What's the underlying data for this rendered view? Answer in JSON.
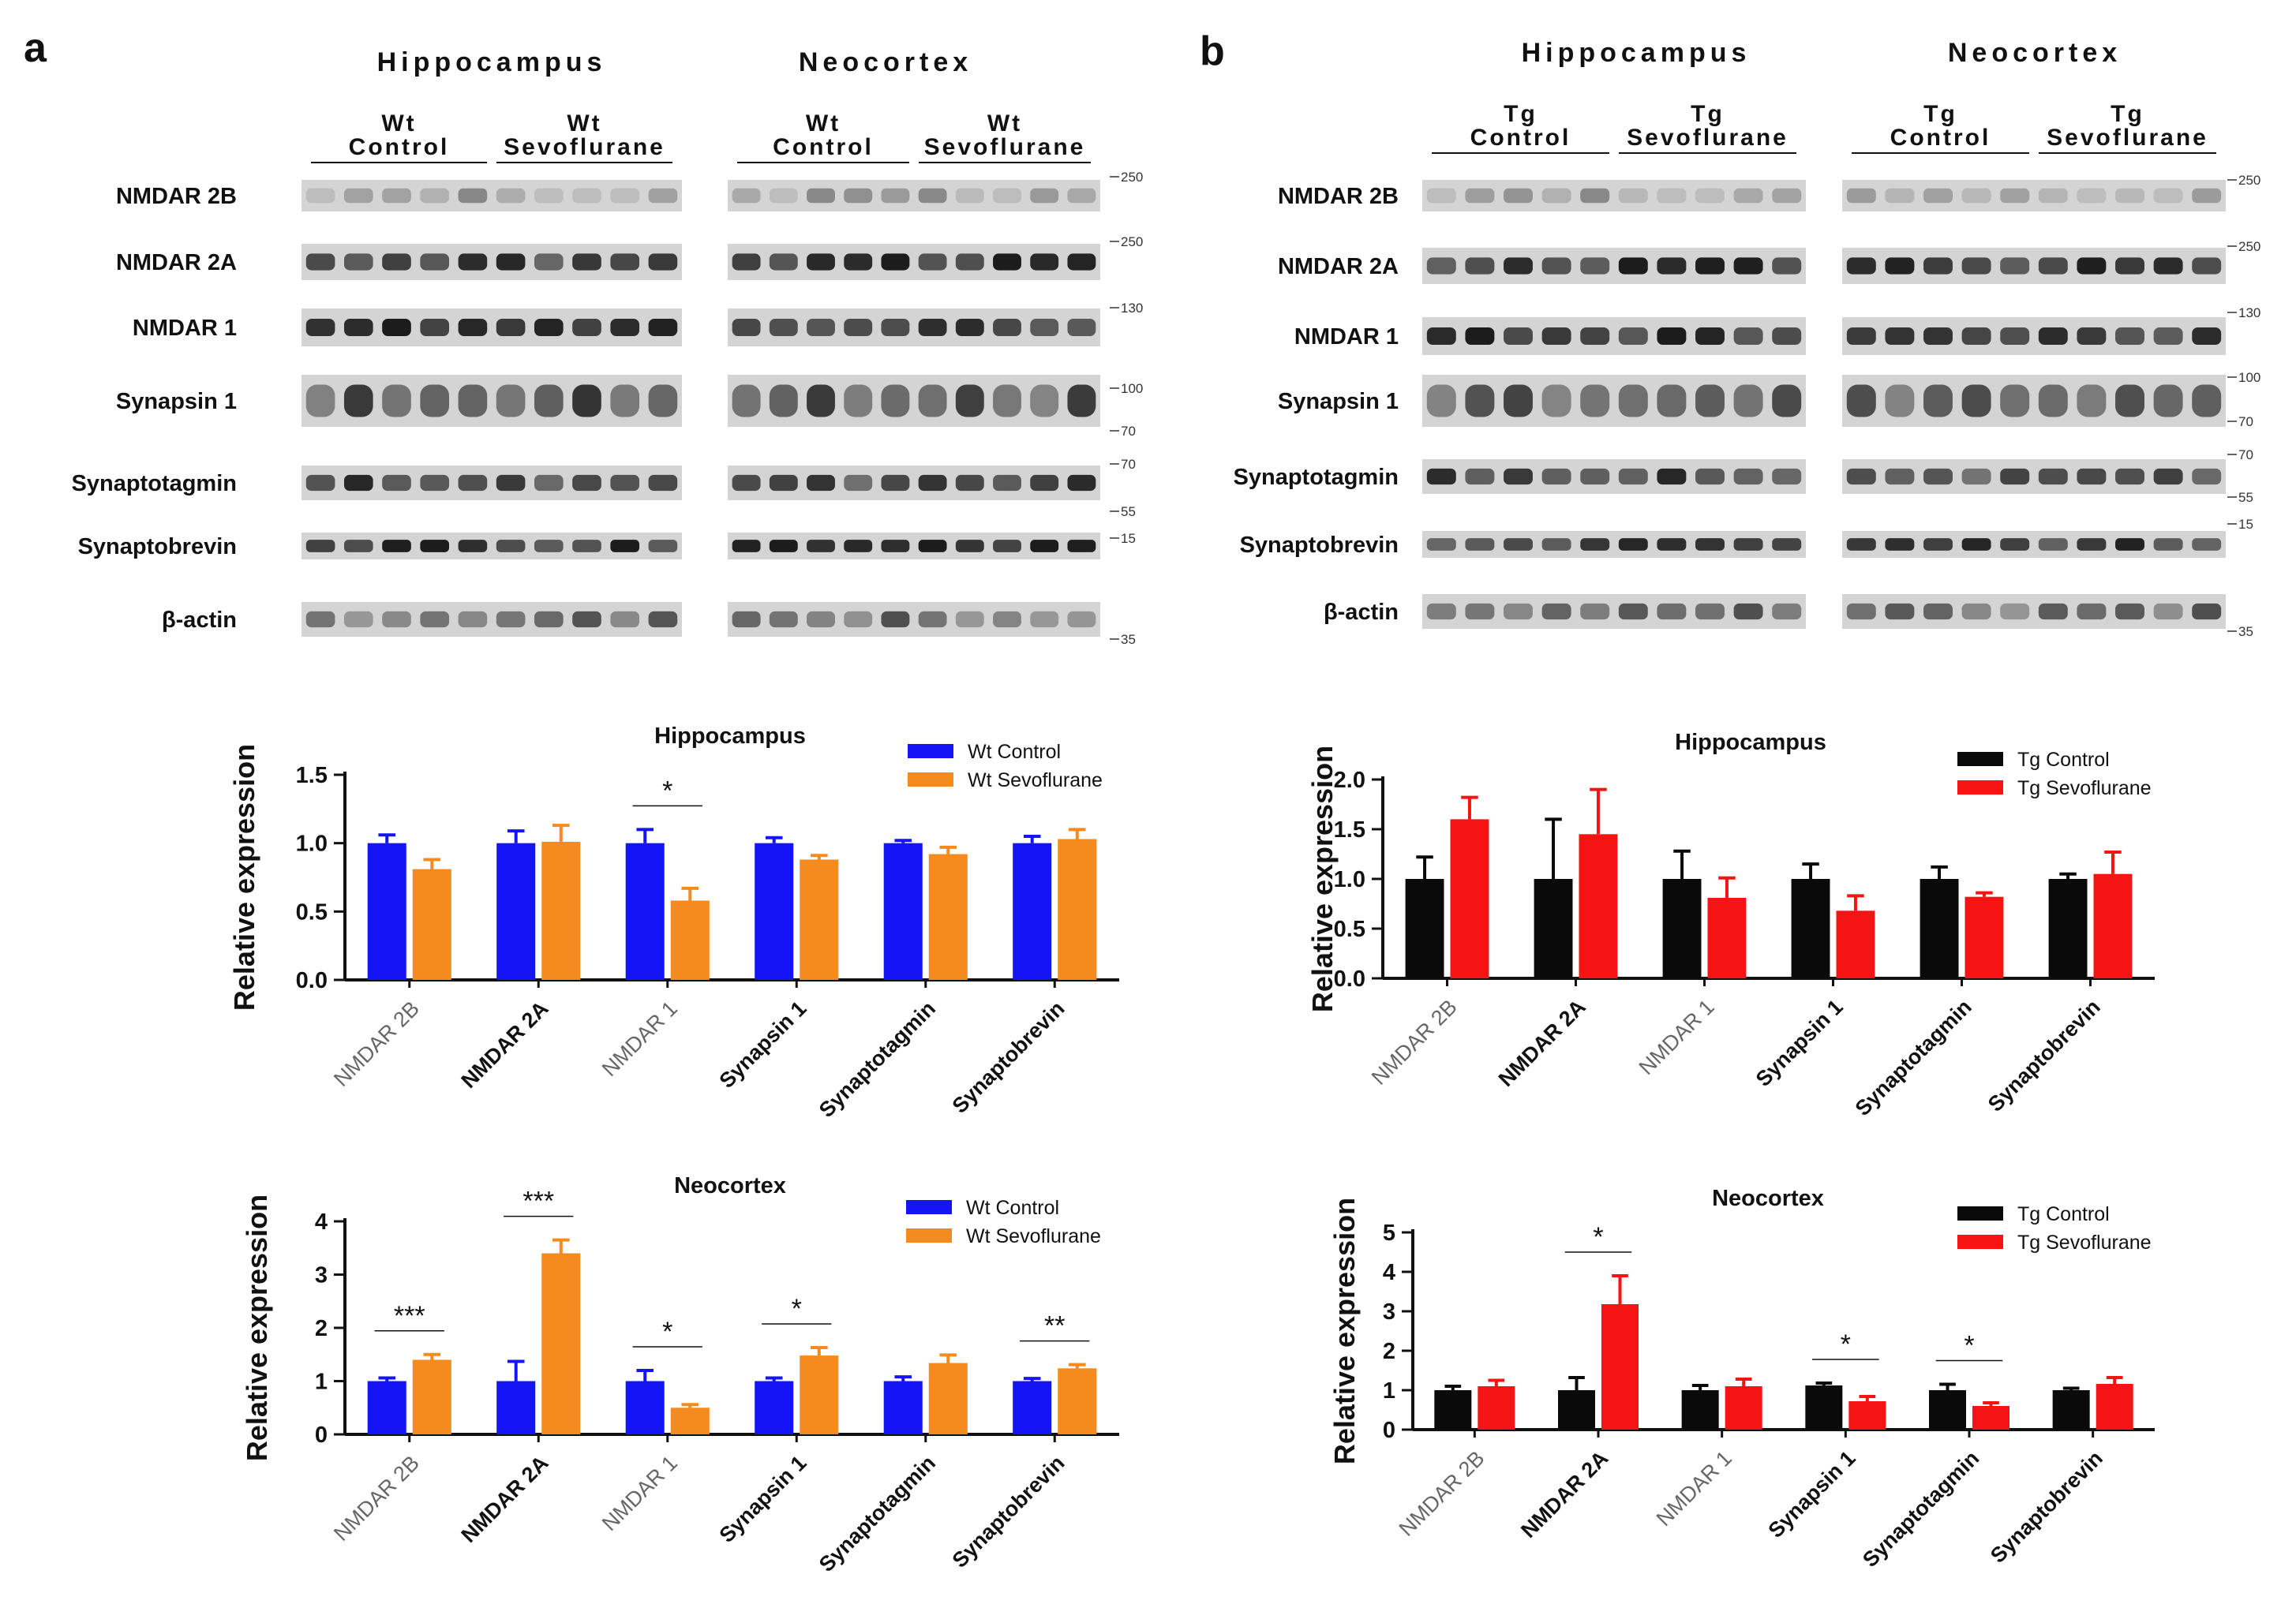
{
  "panels": [
    {
      "letter": "a",
      "blots": {
        "regions": [
          "Hippocampus",
          "Neocortex"
        ],
        "groups": [
          {
            "genotype": "Wt",
            "treatment": "Control"
          },
          {
            "genotype": "Wt",
            "treatment": "Sevoflurane"
          }
        ],
        "proteins": [
          "NMDAR 2B",
          "NMDAR 2A",
          "NMDAR 1",
          "Synapsin 1",
          "Synaptotagmin",
          "Synaptobrevin",
          "β-actin"
        ],
        "markers": [
          "250",
          "250",
          "130",
          "100",
          "70",
          "70",
          "55",
          "15",
          "35"
        ]
      }
    },
    {
      "letter": "b",
      "blots": {
        "regions": [
          "Hippocampus",
          "Neocortex"
        ],
        "groups": [
          {
            "genotype": "Tg",
            "treatment": "Control"
          },
          {
            "genotype": "Tg",
            "treatment": "Sevoflurane"
          }
        ],
        "proteins": [
          "NMDAR 2B",
          "NMDAR 2A",
          "NMDAR 1",
          "Synapsin 1",
          "Synaptotagmin",
          "Synaptobrevin",
          "β-actin"
        ],
        "markers": [
          "250",
          "250",
          "130",
          "100",
          "70",
          "70",
          "55",
          "15",
          "35"
        ]
      }
    }
  ],
  "colors": {
    "wt_control": "#1414f5",
    "wt_sevoflurane": "#f58a1f",
    "tg_control": "#0a0a0a",
    "tg_sevoflurane": "#f51414",
    "blot_bg": "#d4d4d4",
    "band": "#1c1c1c"
  },
  "chart_data": [
    {
      "type": "bar",
      "title": "Hippocampus",
      "xlabel": "",
      "ylabel": "Relative expression",
      "ylim": [
        0,
        1.5
      ],
      "yticks": [
        "0.0",
        "0.5",
        "1.0",
        "1.5"
      ],
      "categories": [
        "NMDAR 2B",
        "NMDAR 2A",
        "NMDAR 1",
        "Synapsin 1",
        "Synaptotagmin",
        "Synaptobrevin"
      ],
      "series": [
        {
          "name": "Wt Control",
          "color": "#1414f5",
          "values": [
            1.0,
            1.0,
            1.0,
            1.0,
            1.0,
            1.0
          ],
          "errors": [
            0.06,
            0.09,
            0.1,
            0.04,
            0.02,
            0.05
          ]
        },
        {
          "name": "Wt Sevoflurane",
          "color": "#f58a1f",
          "values": [
            0.81,
            1.01,
            0.58,
            0.88,
            0.92,
            1.03
          ],
          "errors": [
            0.07,
            0.12,
            0.09,
            0.03,
            0.05,
            0.07
          ]
        }
      ],
      "significance": [
        {
          "category": 2,
          "label": "*"
        }
      ]
    },
    {
      "type": "bar",
      "title": "Neocortex",
      "xlabel": "",
      "ylabel": "Relative expression",
      "ylim": [
        0,
        4
      ],
      "yticks": [
        "0",
        "1",
        "2",
        "3",
        "4"
      ],
      "categories": [
        "NMDAR 2B",
        "NMDAR 2A",
        "NMDAR 1",
        "Synapsin 1",
        "Synaptotagmin",
        "Synaptobrevin"
      ],
      "series": [
        {
          "name": "Wt Control",
          "color": "#1414f5",
          "values": [
            1.0,
            1.0,
            1.0,
            1.0,
            1.0,
            1.0
          ],
          "errors": [
            0.06,
            0.37,
            0.2,
            0.06,
            0.08,
            0.05
          ]
        },
        {
          "name": "Wt Sevoflurane",
          "color": "#f58a1f",
          "values": [
            1.4,
            3.4,
            0.5,
            1.48,
            1.34,
            1.24
          ],
          "errors": [
            0.1,
            0.25,
            0.06,
            0.15,
            0.15,
            0.07
          ]
        }
      ],
      "significance": [
        {
          "category": 0,
          "label": "***"
        },
        {
          "category": 1,
          "label": "***"
        },
        {
          "category": 2,
          "label": "*"
        },
        {
          "category": 3,
          "label": "*"
        },
        {
          "category": 5,
          "label": "**"
        }
      ]
    },
    {
      "type": "bar",
      "title": "Hippocampus",
      "xlabel": "",
      "ylabel": "Relative expression",
      "ylim": [
        0,
        2.0
      ],
      "yticks": [
        "0.0",
        "0.5",
        "1.0",
        "1.5",
        "2.0"
      ],
      "categories": [
        "NMDAR 2B",
        "NMDAR 2A",
        "NMDAR 1",
        "Synapsin 1",
        "Synaptotagmin",
        "Synaptobrevin"
      ],
      "series": [
        {
          "name": "Tg Control",
          "color": "#0a0a0a",
          "values": [
            1.0,
            1.0,
            1.0,
            1.0,
            1.0,
            1.0
          ],
          "errors": [
            0.22,
            0.6,
            0.28,
            0.15,
            0.12,
            0.05
          ]
        },
        {
          "name": "Tg Sevoflurane",
          "color": "#f51414",
          "values": [
            1.6,
            1.45,
            0.81,
            0.68,
            0.82,
            1.05
          ],
          "errors": [
            0.22,
            0.45,
            0.2,
            0.15,
            0.04,
            0.22
          ]
        }
      ],
      "significance": []
    },
    {
      "type": "bar",
      "title": "Neocortex",
      "xlabel": "",
      "ylabel": "Relative expression",
      "ylim": [
        0,
        5
      ],
      "yticks": [
        "0",
        "1",
        "2",
        "3",
        "4",
        "5"
      ],
      "categories": [
        "NMDAR 2B",
        "NMDAR 2A",
        "NMDAR 1",
        "Synapsin 1",
        "Synaptotagmin",
        "Synaptobrevin"
      ],
      "series": [
        {
          "name": "Tg Control",
          "color": "#0a0a0a",
          "values": [
            1.0,
            1.0,
            1.0,
            1.12,
            1.0,
            1.0
          ],
          "errors": [
            0.1,
            0.32,
            0.12,
            0.06,
            0.15,
            0.05
          ]
        },
        {
          "name": "Tg Sevoflurane",
          "color": "#f51414",
          "values": [
            1.1,
            3.18,
            1.1,
            0.72,
            0.6,
            1.16
          ],
          "errors": [
            0.15,
            0.72,
            0.18,
            0.12,
            0.08,
            0.16
          ]
        }
      ],
      "significance": [
        {
          "category": 1,
          "label": "*"
        },
        {
          "category": 3,
          "label": "*"
        },
        {
          "category": 4,
          "label": "*"
        }
      ]
    }
  ]
}
